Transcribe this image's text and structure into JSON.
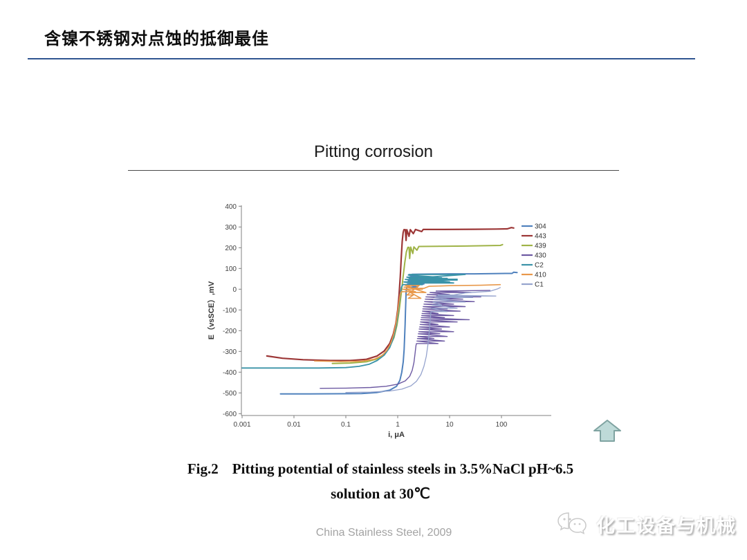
{
  "slide": {
    "title": "含镍不锈钢对点蚀的抵御最佳",
    "footer": "China Stainless Steel, 2009",
    "watermark": "化工设备与机械",
    "caption": {
      "fig_label": "Fig.2",
      "line1": "Pitting potential of stainless steels in 3.5%NaCl pH~6.5",
      "line2": "solution at 30℃"
    }
  },
  "chart_data": {
    "type": "line",
    "title": "Pitting corrosion",
    "xlabel": "i, μA",
    "ylabel": "E（vsSCE）,mV",
    "x_scale": "log",
    "xlim": [
      0.001,
      1000
    ],
    "ylim": [
      -600,
      400
    ],
    "x_ticks": [
      0.001,
      0.01,
      0.1,
      1,
      10,
      100
    ],
    "y_ticks": [
      400,
      300,
      200,
      100,
      0,
      -100,
      -200,
      -300,
      -400,
      -500,
      -600
    ],
    "grid": false,
    "legend_position": "right-inside",
    "axis_color": "#808080",
    "tick_label_color": "#404040",
    "series": [
      {
        "name": "304",
        "color": "#4f81bd",
        "points": [
          [
            0.0055,
            -505
          ],
          [
            0.02,
            -505
          ],
          [
            0.08,
            -504
          ],
          [
            0.2,
            -503
          ],
          [
            0.4,
            -498
          ],
          [
            0.7,
            -487
          ],
          [
            0.95,
            -468
          ],
          [
            1.1,
            -440
          ],
          [
            1.2,
            -400
          ],
          [
            1.28,
            -350
          ],
          [
            1.33,
            -290
          ],
          [
            1.36,
            -230
          ],
          [
            1.39,
            -170
          ],
          [
            1.41,
            -110
          ],
          [
            1.43,
            -60
          ],
          [
            1.45,
            -15
          ],
          [
            1.5,
            10
          ],
          [
            2.4,
            10
          ],
          [
            1.55,
            25
          ],
          [
            3.2,
            25
          ],
          [
            1.6,
            40
          ],
          [
            2.0,
            40
          ],
          [
            1.65,
            55
          ],
          [
            2.8,
            55
          ],
          [
            1.7,
            66
          ],
          [
            1.9,
            66
          ],
          [
            1.75,
            45
          ],
          [
            3.6,
            45
          ],
          [
            1.8,
            60
          ],
          [
            2.6,
            60
          ],
          [
            1.9,
            72
          ],
          [
            4,
            73
          ],
          [
            10,
            74
          ],
          [
            30,
            74
          ],
          [
            70,
            75
          ],
          [
            120,
            76
          ],
          [
            160,
            76
          ],
          [
            172,
            82
          ],
          [
            200,
            80
          ]
        ]
      },
      {
        "name": "443",
        "color": "#9c3636",
        "points": [
          [
            0.003,
            -322
          ],
          [
            0.006,
            -333
          ],
          [
            0.015,
            -340
          ],
          [
            0.05,
            -344
          ],
          [
            0.12,
            -344
          ],
          [
            0.25,
            -338
          ],
          [
            0.4,
            -322
          ],
          [
            0.55,
            -298
          ],
          [
            0.7,
            -262
          ],
          [
            0.82,
            -218
          ],
          [
            0.92,
            -165
          ],
          [
            1.0,
            -100
          ],
          [
            1.06,
            -30
          ],
          [
            1.12,
            60
          ],
          [
            1.17,
            150
          ],
          [
            1.22,
            230
          ],
          [
            1.27,
            272
          ],
          [
            1.32,
            287
          ],
          [
            1.4,
            287
          ],
          [
            1.45,
            235
          ],
          [
            1.5,
            287
          ],
          [
            1.65,
            255
          ],
          [
            1.75,
            287
          ],
          [
            2.0,
            268
          ],
          [
            2.2,
            288
          ],
          [
            2.9,
            278
          ],
          [
            3.1,
            288
          ],
          [
            8,
            288
          ],
          [
            30,
            289
          ],
          [
            80,
            290
          ],
          [
            130,
            291
          ],
          [
            155,
            297
          ],
          [
            172,
            295
          ]
        ]
      },
      {
        "name": "439",
        "color": "#9fb347",
        "points": [
          [
            0.055,
            -358
          ],
          [
            0.12,
            -356
          ],
          [
            0.25,
            -350
          ],
          [
            0.4,
            -336
          ],
          [
            0.55,
            -312
          ],
          [
            0.7,
            -278
          ],
          [
            0.85,
            -232
          ],
          [
            0.97,
            -172
          ],
          [
            1.07,
            -100
          ],
          [
            1.17,
            -20
          ],
          [
            1.27,
            60
          ],
          [
            1.37,
            130
          ],
          [
            1.47,
            180
          ],
          [
            1.57,
            202
          ],
          [
            1.65,
            202
          ],
          [
            1.7,
            148
          ],
          [
            1.78,
            203
          ],
          [
            1.95,
            172
          ],
          [
            2.05,
            204
          ],
          [
            2.35,
            188
          ],
          [
            2.55,
            206
          ],
          [
            6,
            207
          ],
          [
            20,
            208
          ],
          [
            60,
            210
          ],
          [
            95,
            211
          ],
          [
            105,
            215
          ]
        ]
      },
      {
        "name": "430",
        "color": "#6c59a2",
        "points": [
          [
            0.032,
            -478
          ],
          [
            0.1,
            -477
          ],
          [
            0.3,
            -474
          ],
          [
            0.6,
            -468
          ],
          [
            1.0,
            -458
          ],
          [
            1.4,
            -442
          ],
          [
            1.7,
            -420
          ],
          [
            1.9,
            -392
          ],
          [
            2.05,
            -355
          ],
          [
            2.15,
            -315
          ],
          [
            2.25,
            -272
          ],
          [
            2.3,
            -262
          ],
          [
            6,
            -262
          ],
          [
            2.35,
            -250
          ],
          [
            8,
            -250
          ],
          [
            2.4,
            -238
          ],
          [
            5,
            -238
          ],
          [
            2.45,
            -228
          ],
          [
            9,
            -228
          ],
          [
            2.5,
            -215
          ],
          [
            6.5,
            -215
          ],
          [
            2.55,
            -205
          ],
          [
            12,
            -205
          ],
          [
            2.6,
            -192
          ],
          [
            7,
            -192
          ],
          [
            2.65,
            -182
          ],
          [
            10,
            -182
          ],
          [
            2.7,
            -170
          ],
          [
            6,
            -170
          ],
          [
            2.75,
            -158
          ],
          [
            14,
            -158
          ],
          [
            2.8,
            -147
          ],
          [
            24,
            -147
          ],
          [
            2.85,
            -137
          ],
          [
            8,
            -137
          ],
          [
            2.9,
            -127
          ],
          [
            12,
            -127
          ],
          [
            2.95,
            -117
          ],
          [
            6,
            -117
          ],
          [
            3.0,
            -106
          ],
          [
            16,
            -106
          ],
          [
            3.05,
            -95
          ],
          [
            9,
            -95
          ],
          [
            3.1,
            -84
          ],
          [
            20,
            -84
          ],
          [
            3.2,
            -72
          ],
          [
            12,
            -72
          ],
          [
            3.3,
            -60
          ],
          [
            30,
            -60
          ],
          [
            3.4,
            -48
          ],
          [
            18,
            -48
          ],
          [
            3.5,
            -37
          ],
          [
            40,
            -37
          ],
          [
            3.7,
            -26
          ],
          [
            10,
            -26
          ],
          [
            4.2,
            -16
          ],
          [
            26,
            -16
          ],
          [
            5.5,
            -9
          ],
          [
            60,
            -6
          ]
        ]
      },
      {
        "name": "C2",
        "color": "#3a93a8",
        "points": [
          [
            0.001,
            -380
          ],
          [
            0.03,
            -380
          ],
          [
            0.1,
            -378
          ],
          [
            0.18,
            -372
          ],
          [
            0.28,
            -362
          ],
          [
            0.4,
            -344
          ],
          [
            0.55,
            -318
          ],
          [
            0.7,
            -282
          ],
          [
            0.82,
            -238
          ],
          [
            0.92,
            -185
          ],
          [
            1.0,
            -128
          ],
          [
            1.06,
            -72
          ],
          [
            1.12,
            -25
          ],
          [
            1.18,
            10
          ],
          [
            1.25,
            22
          ],
          [
            3,
            22
          ],
          [
            1.32,
            35
          ],
          [
            5,
            35
          ],
          [
            1.4,
            47
          ],
          [
            2.5,
            47
          ],
          [
            1.5,
            58
          ],
          [
            6,
            58
          ],
          [
            1.6,
            68
          ],
          [
            1.65,
            71
          ],
          [
            20,
            71
          ],
          [
            1.7,
            52
          ],
          [
            9,
            52
          ],
          [
            1.82,
            40
          ],
          [
            4,
            40
          ],
          [
            1.95,
            30
          ],
          [
            12,
            30
          ],
          [
            2.1,
            44
          ],
          [
            14,
            44
          ],
          [
            2.3,
            55
          ],
          [
            7,
            55
          ],
          [
            2.6,
            35
          ],
          [
            10,
            35
          ],
          [
            3.2,
            48
          ],
          [
            14,
            48
          ]
        ]
      },
      {
        "name": "410",
        "color": "#e8984a",
        "points": [
          [
            0.025,
            -346
          ],
          [
            0.08,
            -349
          ],
          [
            0.2,
            -347
          ],
          [
            0.35,
            -338
          ],
          [
            0.5,
            -320
          ],
          [
            0.62,
            -295
          ],
          [
            0.73,
            -262
          ],
          [
            0.83,
            -220
          ],
          [
            0.92,
            -168
          ],
          [
            1.0,
            -110
          ],
          [
            1.06,
            -58
          ],
          [
            1.12,
            -22
          ],
          [
            1.18,
            -12
          ],
          [
            2.2,
            -12
          ],
          [
            1.25,
            0
          ],
          [
            3,
            0
          ],
          [
            1.32,
            10
          ],
          [
            1.8,
            10
          ],
          [
            1.4,
            18
          ],
          [
            2.6,
            18
          ],
          [
            1.5,
            -28
          ],
          [
            2.0,
            -28
          ],
          [
            1.6,
            -44
          ],
          [
            2.8,
            -44
          ],
          [
            1.75,
            -16
          ],
          [
            3.5,
            -16
          ],
          [
            1.95,
            4
          ],
          [
            3.2,
            4
          ],
          [
            4,
            14
          ],
          [
            10,
            17
          ],
          [
            40,
            19
          ],
          [
            95,
            22
          ]
        ]
      },
      {
        "name": "C1",
        "color": "#95a3cd",
        "points": [
          [
            0.1,
            -498
          ],
          [
            0.3,
            -496
          ],
          [
            0.7,
            -491
          ],
          [
            1.2,
            -482
          ],
          [
            1.8,
            -466
          ],
          [
            2.3,
            -444
          ],
          [
            2.8,
            -412
          ],
          [
            3.2,
            -372
          ],
          [
            3.55,
            -324
          ],
          [
            3.8,
            -272
          ],
          [
            4.0,
            -220
          ],
          [
            4.15,
            -170
          ],
          [
            4.3,
            -125
          ],
          [
            4.4,
            -108
          ],
          [
            9,
            -108
          ],
          [
            4.5,
            -92
          ],
          [
            14,
            -92
          ],
          [
            4.6,
            -76
          ],
          [
            7,
            -76
          ],
          [
            4.75,
            -62
          ],
          [
            20,
            -62
          ],
          [
            4.9,
            -50
          ],
          [
            10,
            -50
          ],
          [
            5.2,
            -40
          ],
          [
            28,
            -40
          ],
          [
            5.6,
            -33
          ],
          [
            78,
            -33
          ],
          [
            6,
            -28
          ],
          [
            12,
            -28
          ],
          [
            20,
            -18
          ],
          [
            60,
            -10
          ],
          [
            85,
            2
          ],
          [
            95,
            8
          ]
        ]
      }
    ]
  },
  "icons": {
    "up_arrow_fill": "#bedad8",
    "up_arrow_stroke": "#7fa3a1"
  }
}
